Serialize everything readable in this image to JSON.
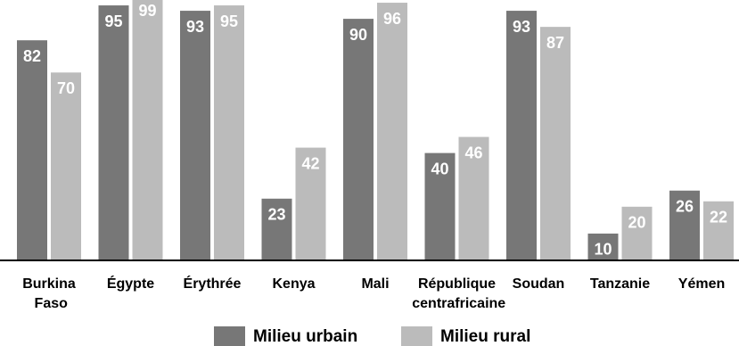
{
  "chart_data": {
    "type": "bar",
    "categories": [
      "Burkina Faso",
      "Égypte",
      "Érythrée",
      "Kenya",
      "Mali",
      "République centrafricaine",
      "Soudan",
      "Tanzanie",
      "Yémen"
    ],
    "series": [
      {
        "name": "Milieu urbain",
        "color": "#777777",
        "values": [
          82,
          95,
          93,
          23,
          90,
          40,
          93,
          10,
          26
        ]
      },
      {
        "name": "Milieu rural",
        "color": "#bbbbbb",
        "values": [
          70,
          99,
          95,
          42,
          96,
          46,
          87,
          20,
          22
        ]
      }
    ],
    "ylim": [
      0,
      100
    ]
  }
}
